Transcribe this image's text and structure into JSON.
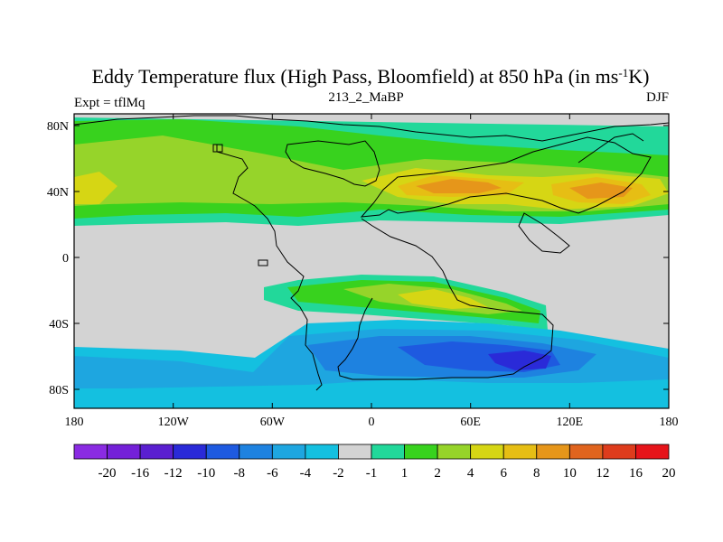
{
  "chart_data": {
    "type": "heatmap",
    "title_main": "Eddy Temperature flux (High Pass, Bloomfield) at 850 hPa (in ms",
    "title_sup": "-1",
    "title_end": "K)",
    "left_label": "Expt = tflMq",
    "center_label": "213_2_MaBP",
    "right_label": "DJF",
    "x_ticks": [
      "180",
      "120W",
      "60W",
      "0",
      "60E",
      "120E",
      "180"
    ],
    "y_ticks": [
      "80N",
      "40N",
      "0",
      "40S",
      "80S"
    ],
    "x_range": [
      -180,
      180
    ],
    "y_range": [
      -90,
      90
    ],
    "colorbar": {
      "colors": [
        "#8a2be2",
        "#7420d8",
        "#5a1fd0",
        "#2a2ad8",
        "#1e5ae0",
        "#1e82e0",
        "#1ea6e0",
        "#14c0e0",
        "#d3d3d3",
        "#22d89a",
        "#38d21e",
        "#96d42a",
        "#d6d614",
        "#e6be14",
        "#e6961a",
        "#e0641e",
        "#de3c1c",
        "#e6141a"
      ],
      "labels": [
        "-20",
        "-16",
        "-12",
        "-10",
        "-8",
        "-6",
        "-4",
        "-2",
        "-1",
        "1",
        "2",
        "4",
        "6",
        "8",
        "10",
        "12",
        "16",
        "20"
      ]
    }
  }
}
